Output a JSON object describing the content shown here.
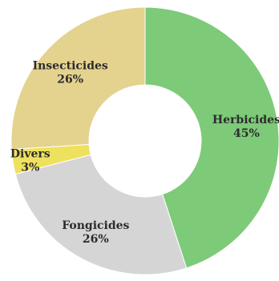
{
  "chart_data": {
    "type": "pie",
    "variant": "donut",
    "title": "",
    "slices": [
      {
        "label": "Herbicides",
        "value": 45,
        "pct_label": "45%",
        "color": "#7dca79"
      },
      {
        "label": "Fongicides",
        "value": 26,
        "pct_label": "26%",
        "color": "#d5d5d5"
      },
      {
        "label": "Divers",
        "value": 3,
        "pct_label": "3%",
        "color": "#eee15e"
      },
      {
        "label": "Insecticides",
        "value": 26,
        "pct_label": "26%",
        "color": "#e4d28f"
      }
    ],
    "start_angle_deg": 0,
    "direction": "clockwise",
    "background": "#ffffff"
  }
}
